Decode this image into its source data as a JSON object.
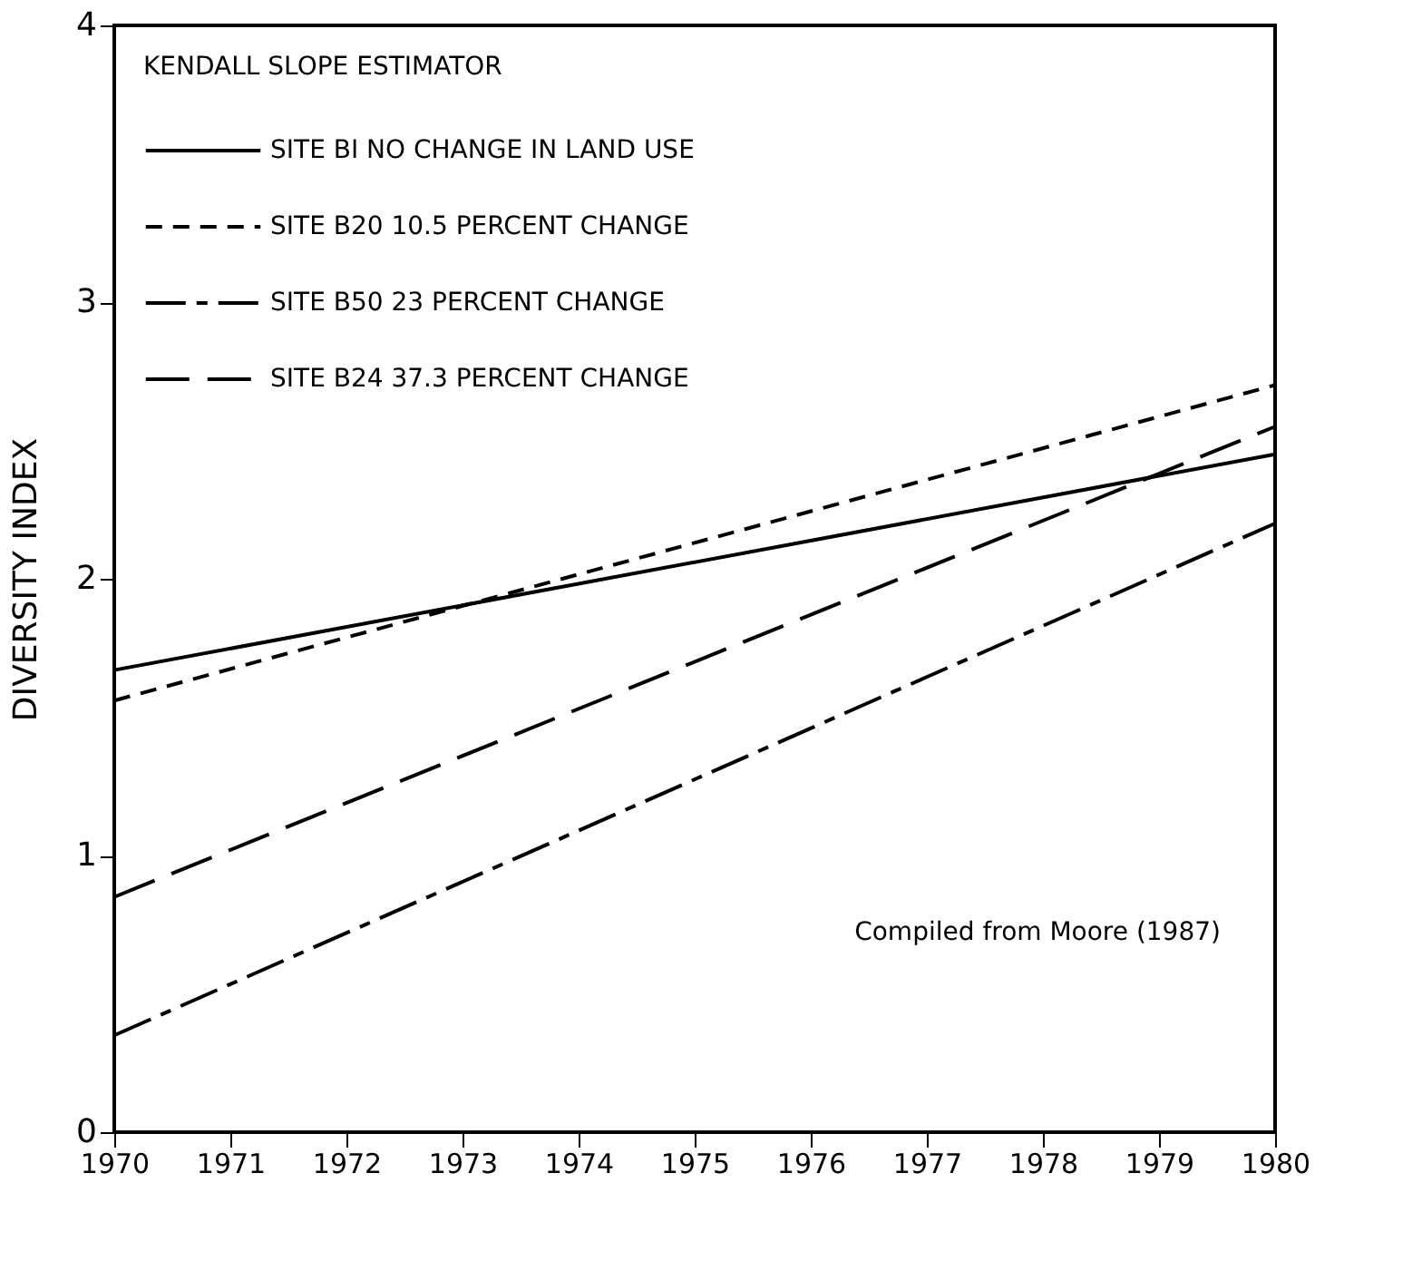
{
  "chart_data": {
    "type": "line",
    "ylabel": "DIVERSITY INDEX",
    "legend_title": "KENDALL SLOPE ESTIMATOR",
    "legend": "top left",
    "grid": false,
    "marker": "none",
    "x": [
      1970,
      1980
    ],
    "xlim": [
      1970,
      1980
    ],
    "xticks": [
      1970,
      1971,
      1972,
      1973,
      1974,
      1975,
      1976,
      1977,
      1978,
      1979,
      1980
    ],
    "ylim": [
      0,
      4
    ],
    "yticks": [
      0,
      1,
      2,
      3,
      4
    ],
    "series": [
      {
        "name": "SITE BI  NO CHANGE IN LAND USE",
        "color": "#000000",
        "line_style": "solid",
        "values": [
          1.67,
          2.45
        ]
      },
      {
        "name": "SITE B20  10.5 PERCENT CHANGE",
        "color": "#000000",
        "line_style": "dashed",
        "values": [
          1.56,
          2.7
        ]
      },
      {
        "name": "SITE B50  23 PERCENT CHANGE",
        "color": "#000000",
        "line_style": "dashdot",
        "values": [
          0.35,
          2.2
        ]
      },
      {
        "name": "SITE B24  37.3 PERCENT CHANGE",
        "color": "#000000",
        "line_style": "longdash",
        "values": [
          0.85,
          2.55
        ]
      }
    ],
    "annotations": [
      "Compiled from Moore (1987)"
    ]
  }
}
